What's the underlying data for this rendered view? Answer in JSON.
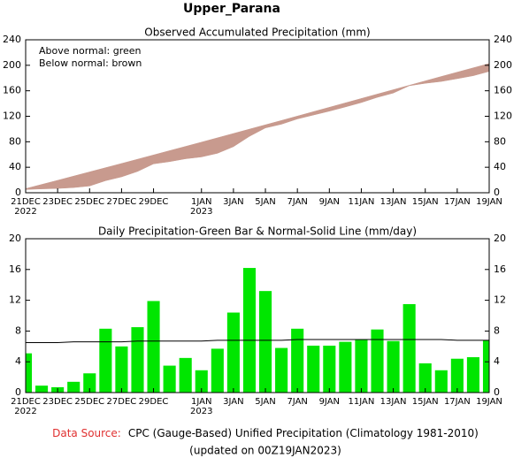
{
  "title": "Upper_Parana",
  "footer": {
    "source_label": "Data Source:",
    "source_text": "CPC (Gauge-Based) Unified Precipitation (Climatology 1981-2010)",
    "updated": "(updated on 00Z19JAN2023)"
  },
  "chart_data": [
    {
      "type": "accumulated",
      "title": "Observed Accumulated Precipitation (mm)",
      "annotations": [
        "Above normal: green",
        "Below normal: brown"
      ],
      "categories": [
        "21DEC",
        null,
        "23DEC",
        null,
        "25DEC",
        null,
        "27DEC",
        null,
        "29DEC",
        null,
        null,
        "1JAN",
        null,
        "3JAN",
        null,
        "5JAN",
        null,
        "7JAN",
        null,
        "9JAN",
        null,
        "11JAN",
        null,
        "13JAN",
        null,
        "15JAN",
        null,
        "17JAN",
        null,
        "19JAN"
      ],
      "year_labels": [
        {
          "index": 0,
          "label": "2022"
        },
        {
          "index": 11,
          "label": "2023"
        }
      ],
      "series": [
        {
          "values": [
            5.1,
            6,
            6.7,
            8.1,
            10.6,
            18.9,
            24.9,
            33.4,
            45.3,
            48.8,
            53.3,
            56.2,
            61.9,
            72.3,
            88.5,
            101.7,
            107.5,
            115.8,
            121.9,
            128,
            134.6,
            141.5,
            149.7,
            156.4,
            167.9,
            171.7,
            174.6,
            179,
            183.6,
            190.4
          ]
        },
        {
          "values": [
            6.5,
            13,
            19.5,
            26.1,
            32.7,
            39.3,
            45.9,
            52.6,
            59.3,
            66,
            72.7,
            79.4,
            86.2,
            93,
            99.8,
            106.6,
            113.4,
            120.3,
            127.2,
            134.1,
            141,
            147.9,
            154.8,
            161.7,
            168.6,
            175.5,
            182.4,
            189.2,
            196,
            202.8
          ]
        }
      ],
      "above_color": "#00dd00",
      "below_color": "#c89a8e",
      "ylim": [
        0,
        240
      ],
      "yticks": [
        0,
        40,
        80,
        120,
        160,
        200,
        240
      ]
    },
    {
      "type": "bar",
      "title": "Daily Precipitation-Green Bar & Normal-Solid Line (mm/day)",
      "categories": [
        "21DEC",
        null,
        "23DEC",
        null,
        "25DEC",
        null,
        "27DEC",
        null,
        "29DEC",
        null,
        null,
        "1JAN",
        null,
        "3JAN",
        null,
        "5JAN",
        null,
        "7JAN",
        null,
        "9JAN",
        null,
        "11JAN",
        null,
        "13JAN",
        null,
        "15JAN",
        null,
        "17JAN",
        null,
        "19JAN"
      ],
      "year_labels": [
        {
          "index": 0,
          "label": "2022"
        },
        {
          "index": 11,
          "label": "2023"
        }
      ],
      "values": [
        5.1,
        0.9,
        0.7,
        1.4,
        2.5,
        8.3,
        6.0,
        8.5,
        11.9,
        3.5,
        4.5,
        2.9,
        5.7,
        10.4,
        16.2,
        13.2,
        5.8,
        8.3,
        6.1,
        6.1,
        6.6,
        6.9,
        8.2,
        6.7,
        11.5,
        3.8,
        2.9,
        4.4,
        4.6,
        6.8
      ],
      "color": "#00e600",
      "line_values": [
        6.5,
        6.5,
        6.5,
        6.6,
        6.6,
        6.6,
        6.6,
        6.7,
        6.7,
        6.7,
        6.7,
        6.7,
        6.8,
        6.8,
        6.8,
        6.8,
        6.8,
        6.9,
        6.9,
        6.9,
        6.9,
        6.9,
        6.9,
        6.9,
        6.9,
        6.9,
        6.9,
        6.8,
        6.8,
        6.8
      ],
      "line_color": "#000000",
      "ylim": [
        0,
        20
      ],
      "yticks": [
        0,
        4,
        8,
        12,
        16,
        20
      ]
    }
  ]
}
